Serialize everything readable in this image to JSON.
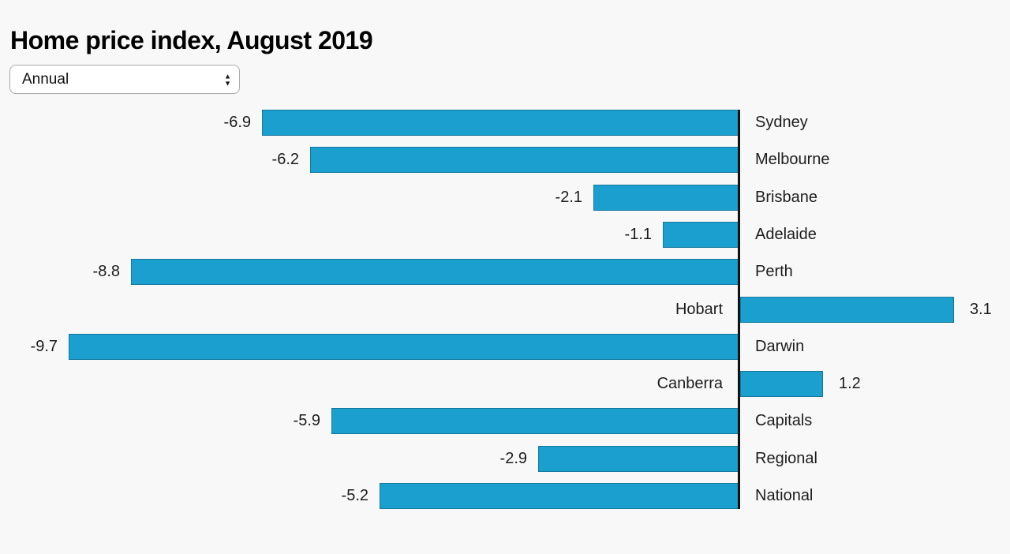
{
  "header": {
    "title": "Home price index, August 2019"
  },
  "controls": {
    "period_select": {
      "value": "Annual"
    }
  },
  "chart_data": {
    "type": "bar",
    "orientation": "horizontal",
    "title": "Home price index, August 2019",
    "categories": [
      "Sydney",
      "Melbourne",
      "Brisbane",
      "Adelaide",
      "Perth",
      "Hobart",
      "Darwin",
      "Canberra",
      "Capitals",
      "Regional",
      "National"
    ],
    "values": [
      -6.9,
      -6.2,
      -2.1,
      -1.1,
      -8.8,
      3.1,
      -9.7,
      1.2,
      -5.9,
      -2.9,
      -5.2
    ],
    "value_labels_shown": true,
    "baseline": 0,
    "xlim": [
      -10.7,
      3.9
    ],
    "grid": false,
    "legend": "none",
    "colors": {
      "bar_fill": "#1a9fce",
      "bar_border": "#1479a0",
      "axis": "#111111",
      "label_text": "#1d1d1d",
      "background": "#f8f8f8"
    }
  }
}
